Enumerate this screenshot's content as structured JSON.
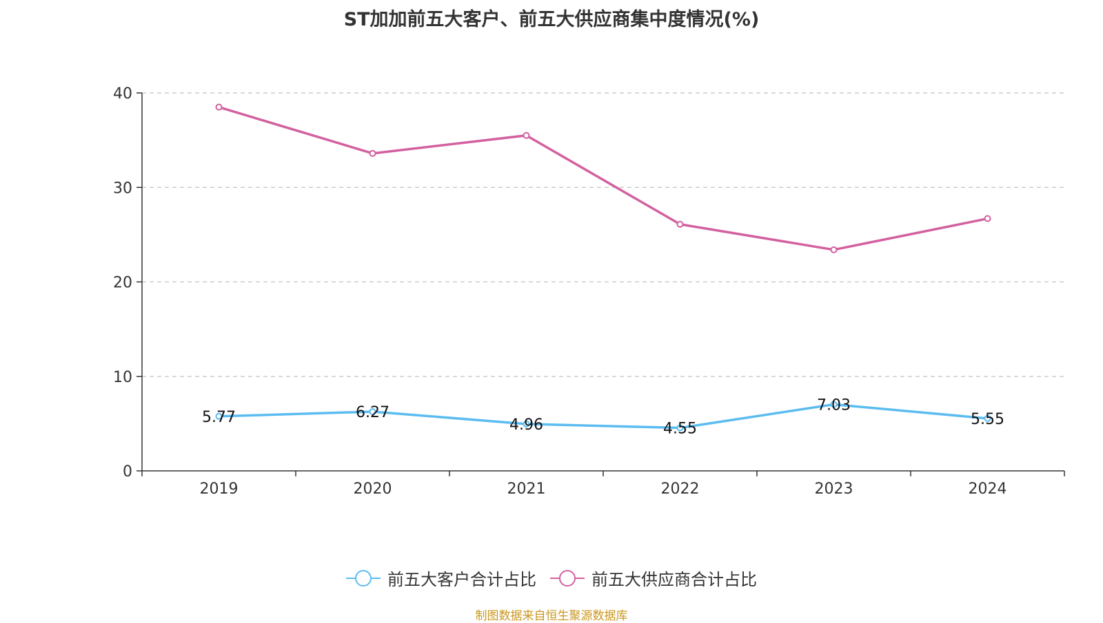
{
  "chart_data": {
    "type": "line",
    "title": "ST加加前五大客户、前五大供应商集中度情况(%)",
    "x": [
      "2019",
      "2020",
      "2021",
      "2022",
      "2023",
      "2024"
    ],
    "ylim": [
      0,
      40
    ],
    "yticks": [
      "0",
      "10",
      "20",
      "30",
      "40"
    ],
    "grid": true,
    "legend_position": "bottom",
    "series": [
      {
        "name": "前五大客户合计占比",
        "values": [
          5.77,
          6.27,
          4.96,
          4.55,
          7.03,
          5.55
        ],
        "labels": [
          "5.77",
          "6.27",
          "4.96",
          "4.55",
          "7.03",
          "5.55"
        ],
        "color": "#5bbcf0",
        "show_labels": true
      },
      {
        "name": "前五大供应商合计占比",
        "values": [
          38.5,
          33.6,
          35.5,
          26.1,
          23.4,
          26.7
        ],
        "color": "#d3609f",
        "show_labels": false
      }
    ]
  },
  "source": "制图数据来自恒生聚源数据库"
}
